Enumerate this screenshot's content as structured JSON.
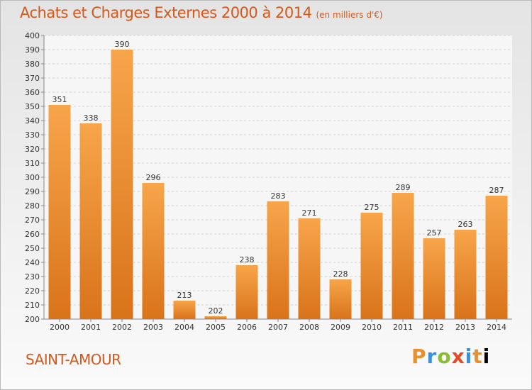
{
  "chart_data": {
    "type": "bar",
    "title": "Achats et Charges Externes 2000 à 2014",
    "subtitle": "(en milliers d'€)",
    "categories": [
      "2000",
      "2001",
      "2002",
      "2003",
      "2004",
      "2005",
      "2006",
      "2007",
      "2008",
      "2009",
      "2010",
      "2011",
      "2012",
      "2013",
      "2014"
    ],
    "values": [
      351,
      338,
      390,
      296,
      213,
      202,
      238,
      283,
      271,
      228,
      275,
      289,
      257,
      263,
      287
    ],
    "ylim": [
      200,
      400
    ],
    "yticks": [
      200,
      210,
      220,
      230,
      240,
      250,
      260,
      270,
      280,
      290,
      300,
      310,
      320,
      330,
      340,
      350,
      360,
      370,
      380,
      390,
      400
    ],
    "grid": true,
    "colors": {
      "bar_top": "#f7a54a",
      "bar_bottom": "#d9731a",
      "text_accent": "#d4581c",
      "grid": "#d2d2d2"
    }
  },
  "location": "SAINT-AMOUR",
  "logo_letters": [
    "P",
    "r",
    "o",
    "x",
    "i",
    "t",
    "i"
  ]
}
